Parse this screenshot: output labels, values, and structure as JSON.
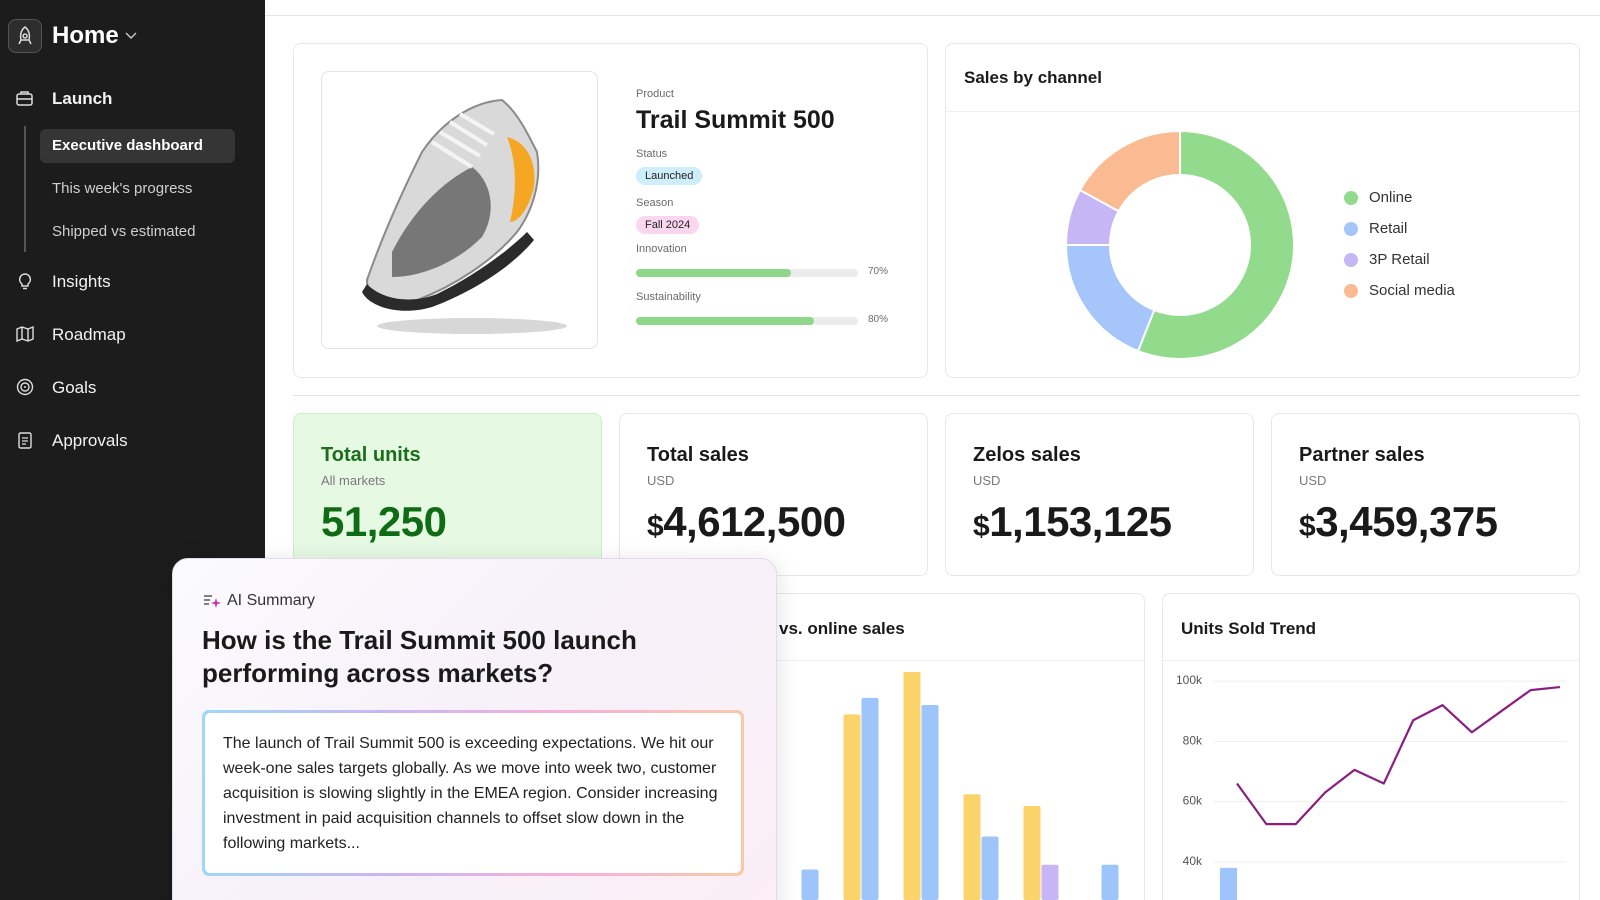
{
  "sidebar": {
    "workspace": "Home",
    "nav": [
      {
        "label": "Launch",
        "children": [
          "Executive dashboard",
          "This week's progress",
          "Shipped vs estimated"
        ]
      },
      {
        "label": "Insights"
      },
      {
        "label": "Roadmap"
      },
      {
        "label": "Goals"
      },
      {
        "label": "Approvals"
      }
    ]
  },
  "product": {
    "product_label": "Product",
    "name": "Trail Summit 500",
    "status_label": "Status",
    "status": "Launched",
    "season_label": "Season",
    "season": "Fall 2024",
    "xlim": [
      0,
      100
    ],
    "metrics": [
      {
        "label": "Innovation",
        "value": 70,
        "value_label": "70%"
      },
      {
        "label": "Sustainability",
        "value": 80,
        "value_label": "80%"
      }
    ]
  },
  "kpis": [
    {
      "title": "Total units",
      "subtitle": "All markets",
      "value": "51,250"
    },
    {
      "title": "Total sales",
      "subtitle": "USD",
      "prefix": "$",
      "value": "4,612,500"
    },
    {
      "title": "Zelos sales",
      "subtitle": "USD",
      "prefix": "$",
      "value": "1,153,125"
    },
    {
      "title": "Partner sales",
      "subtitle": "USD",
      "prefix": "$",
      "value": "3,459,375"
    }
  ],
  "chart_data": [
    {
      "type": "pie",
      "title": "Sales by channel",
      "categories": [
        "Online",
        "Retail",
        "3P Retail",
        "Social media"
      ],
      "values": [
        56,
        19,
        8,
        17
      ],
      "colors": [
        "#92db8c",
        "#a5c5fb",
        "#c7b6f5",
        "#fbbb92"
      ],
      "donut": true
    },
    {
      "type": "bar",
      "title": "Retail vs. online sales",
      "categories": [
        null,
        null,
        null,
        null,
        null,
        null
      ],
      "ylim": [
        0,
        100
      ],
      "series": [
        {
          "color": "#fbd36b",
          "values": [
            null,
            79,
            97,
            45,
            40,
            null
          ]
        },
        {
          "color": "#9ec5fb",
          "values": [
            13,
            86,
            83,
            27,
            null,
            15
          ]
        },
        {
          "color": "#c7b6f5",
          "values": [
            null,
            null,
            null,
            null,
            15,
            null
          ]
        }
      ]
    },
    {
      "type": "line",
      "title": "Units Sold Trend",
      "x": [
        null,
        null,
        null,
        null,
        null,
        null,
        null,
        null,
        null,
        null,
        null,
        null
      ],
      "ylim": [
        25000,
        105000
      ],
      "yticks": [
        {
          "value": 100000,
          "label": "100k"
        },
        {
          "value": 80000,
          "label": "80k"
        },
        {
          "value": 60000,
          "label": "60k"
        },
        {
          "value": 40000,
          "label": "40k"
        }
      ],
      "grid": true,
      "series": [
        {
          "type": "line",
          "color": "#8a1f7f",
          "values": [
            66000,
            52500,
            52500,
            63000,
            70500,
            66000,
            87000,
            92000,
            83000,
            90000,
            97000,
            98000
          ]
        },
        {
          "type": "bar",
          "color": "#9ec5fb",
          "values": [
            38000,
            null,
            null,
            null,
            null,
            null,
            null,
            null,
            null,
            null,
            null,
            null
          ]
        }
      ]
    }
  ],
  "ai_summary": {
    "label": "AI Summary",
    "question": "How is the Trail Summit 500 launch performing across markets?",
    "answer": "The launch of Trail Summit 500 is exceeding expectations. We hit our week-one sales targets globally. As we move into week two, customer acquisition is slowing slightly in the EMEA region. Consider increasing investment in paid acquisition channels to offset slow down in the following markets..."
  }
}
